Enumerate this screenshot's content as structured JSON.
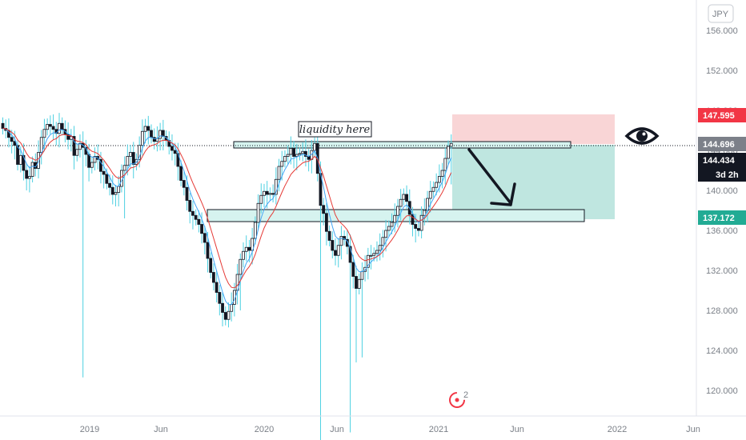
{
  "currency_label": "JPY",
  "colors": {
    "bull": "#ffffff",
    "bear": "#131722",
    "wick": "#4dd0e1",
    "ema_fast": "#42a5f5",
    "ema_slow": "#e53935",
    "target_fill": "#bfe6e0",
    "stop_fill": "#f9d5d6",
    "zone_fill": "#d6f3ef",
    "stop_badge": "#f23645",
    "target_badge": "#22ab94",
    "price_badge": "#7c8089",
    "last_badge": "#131722"
  },
  "annotations": {
    "liquidity_label": "liquidity here",
    "eye_icon": "eye-icon",
    "arrow": "down-arrow",
    "logo_count": "2"
  },
  "price_labels": {
    "stop": "147.595",
    "current": "144.696",
    "last": "144.434",
    "countdown": "3d 2h",
    "target": "137.172"
  },
  "chart_data": {
    "type": "candlestick",
    "symbol_currency": "JPY",
    "y_range": [
      117.5,
      157.8
    ],
    "y_ticks": [
      "156.000",
      "152.000",
      "148.000",
      "144.000",
      "140.000",
      "136.000",
      "132.000",
      "128.000",
      "124.000",
      "120.000"
    ],
    "y_tick_values": [
      156,
      152,
      148,
      144,
      140,
      136,
      132,
      128,
      124,
      120
    ],
    "x_ticks": [
      "2019",
      "Jun",
      "2020",
      "Jun",
      "2021",
      "Jun",
      "2022",
      "Jun"
    ],
    "closes": [
      146.2,
      146.0,
      145.3,
      144.9,
      144.5,
      142.6,
      143.5,
      142.0,
      141.2,
      141.4,
      142.8,
      142.2,
      143.8,
      145.3,
      146.1,
      146.6,
      146.4,
      146.1,
      145.7,
      146.7,
      146.1,
      145.6,
      145.1,
      145.4,
      143.5,
      144.1,
      144.7,
      144.3,
      143.6,
      142.3,
      142.8,
      143.4,
      143.1,
      141.9,
      141.6,
      140.7,
      140.3,
      139.6,
      139.8,
      140.4,
      142.0,
      142.5,
      143.4,
      143.8,
      142.6,
      143.1,
      144.5,
      145.9,
      146.4,
      146.0,
      145.3,
      144.9,
      145.2,
      146.0,
      145.4,
      145.0,
      144.4,
      144.0,
      143.7,
      142.4,
      141.0,
      140.3,
      139.0,
      137.9,
      137.5,
      137.1,
      136.6,
      135.7,
      134.8,
      133.2,
      131.8,
      130.8,
      129.8,
      128.7,
      127.8,
      127.1,
      127.9,
      128.6,
      130.0,
      131.6,
      133.1,
      133.9,
      134.3,
      134.0,
      135.2,
      136.8,
      138.7,
      139.5,
      139.9,
      139.6,
      139.7,
      139.6,
      141.1,
      142.4,
      142.9,
      143.4,
      143.6,
      144.2,
      143.4,
      143.6,
      143.7,
      143.9,
      143.4,
      143.1,
      144.0,
      144.7,
      141.7,
      138.5,
      137.7,
      135.9,
      135.0,
      134.0,
      133.5,
      134.5,
      135.4,
      135.1,
      134.4,
      132.8,
      131.4,
      130.2,
      131.1,
      131.9,
      132.3,
      133.5,
      133.5,
      133.7,
      134.0,
      134.5,
      135.3,
      136.0,
      136.4,
      136.8,
      137.5,
      138.4,
      139.1,
      139.6,
      138.9,
      137.6,
      136.6,
      136.2,
      136.0,
      137.5,
      138.0,
      139.2,
      139.9,
      140.3,
      140.8,
      141.4,
      142.0,
      143.2,
      144.4,
      144.7
    ],
    "target_level": 137.172,
    "stop_level": 147.595,
    "entry_level": 144.696,
    "last_price": 144.434
  }
}
